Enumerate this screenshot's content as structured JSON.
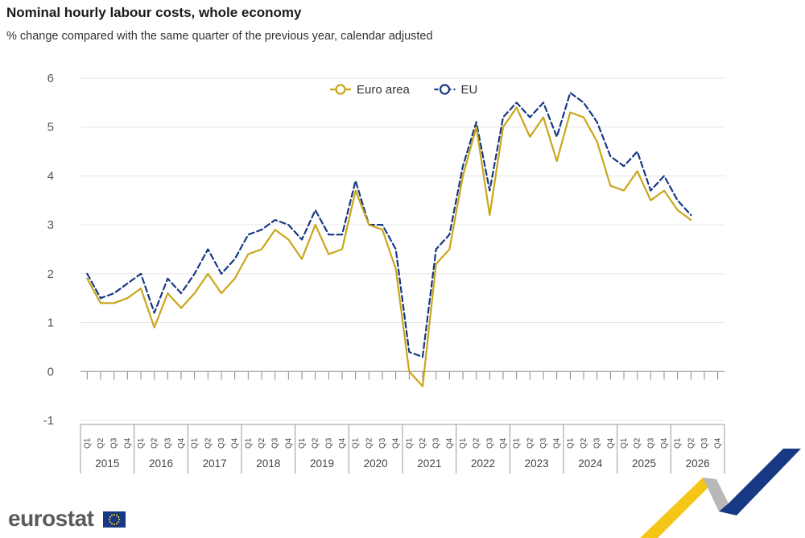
{
  "title": "Nominal hourly labour costs, whole economy",
  "subtitle": "% change compared with the same quarter of the previous year, calendar adjusted",
  "logo": {
    "text": "eurostat"
  },
  "chart_data": {
    "type": "line",
    "title": "Nominal hourly labour costs, whole economy",
    "subtitle": "% change compared with the same quarter of the previous year, calendar adjusted",
    "xlabel": "",
    "ylabel": "",
    "ylim": [
      -1,
      6
    ],
    "yticks": [
      -1,
      0,
      1,
      2,
      3,
      4,
      5,
      6
    ],
    "grid": true,
    "legend_position": "top-center",
    "years": [
      "2015",
      "2016",
      "2017",
      "2018",
      "2019",
      "2020",
      "2021",
      "2022",
      "2023",
      "2024",
      "2025",
      "2026"
    ],
    "quarter_labels": [
      "Q1",
      "Q2",
      "Q3",
      "Q4"
    ],
    "series": [
      {
        "name": "Euro area",
        "color": "#c9a619",
        "style": "solid",
        "values": [
          1.9,
          1.4,
          1.4,
          1.5,
          1.7,
          0.9,
          1.6,
          1.3,
          1.6,
          2.0,
          1.6,
          1.9,
          2.4,
          2.5,
          2.9,
          2.7,
          2.3,
          3.0,
          2.4,
          2.5,
          3.7,
          3.0,
          2.9,
          2.1,
          0.0,
          -0.3,
          2.2,
          2.5,
          4.0,
          5.0,
          3.2,
          5.0,
          5.4,
          4.8,
          5.2,
          4.3,
          5.3,
          5.2,
          4.7,
          3.8,
          3.7,
          4.1,
          3.5,
          3.7,
          3.3,
          3.1
        ]
      },
      {
        "name": "EU",
        "color": "#173883",
        "style": "dashed",
        "values": [
          2.0,
          1.5,
          1.6,
          1.8,
          2.0,
          1.2,
          1.9,
          1.6,
          2.0,
          2.5,
          2.0,
          2.3,
          2.8,
          2.9,
          3.1,
          3.0,
          2.7,
          3.3,
          2.8,
          2.8,
          3.9,
          3.0,
          3.0,
          2.5,
          0.4,
          0.3,
          2.5,
          2.8,
          4.2,
          5.1,
          3.7,
          5.2,
          5.5,
          5.2,
          5.5,
          4.8,
          5.7,
          5.5,
          5.1,
          4.4,
          4.2,
          4.5,
          3.7,
          4.0,
          3.5,
          3.2
        ]
      }
    ]
  }
}
